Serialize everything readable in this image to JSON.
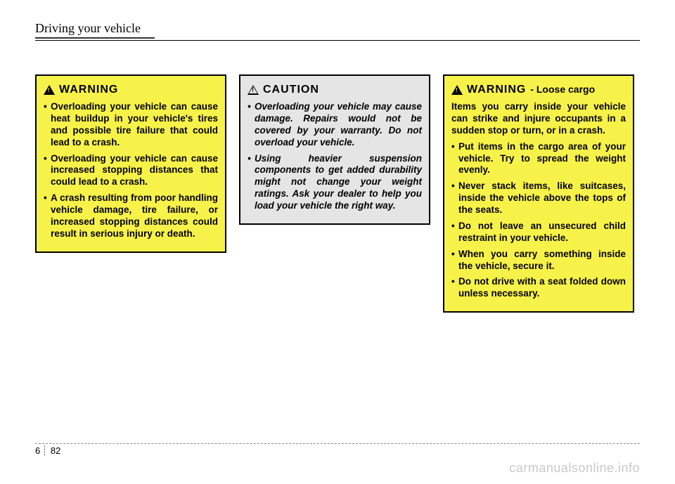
{
  "header": {
    "title": "Driving your vehicle"
  },
  "warning1": {
    "label": "WARNING",
    "items": [
      "Overloading your vehicle can cause heat buildup in your vehicle's tires and possible tire failure that could lead to a crash.",
      "Overloading your vehicle can cause increased stopping dis­tances that could lead to a crash.",
      "A crash resulting from poor handling vehicle damage, tire failure, or increased stopping distances could result in seri­ous injury or death."
    ]
  },
  "caution": {
    "label": "CAUTION",
    "items": [
      "Overloading your vehicle may cause damage. Repairs would not be covered by your war­ranty. Do not overload your vehicle.",
      "Using heavier suspension components to get added durability might not change your weight ratings. Ask your dealer to help you load your vehicle the right way."
    ]
  },
  "warning2": {
    "label": "WARNING",
    "sub": "- Loose cargo",
    "lead": "Items you carry inside your vehicle can strike and injure occupants in a sudden stop or turn, or in a crash.",
    "items": [
      "Put items in the cargo area of your vehicle. Try to spread the weight evenly.",
      "Never stack items, like suit­cases, inside the vehicle above the tops of the seats.",
      "Do not leave an unsecured child restraint in your vehicle.",
      "When you carry something inside the vehicle, secure it.",
      "Do not drive with a seat folded down unless necessary."
    ]
  },
  "footer": {
    "chapter": "6",
    "page": "82"
  },
  "watermark": "carmanualsonline.info",
  "colors": {
    "warning_bg": "#f7f24a",
    "caution_bg": "#e5e5e5",
    "border": "#000000",
    "watermark": "#c9c9c9"
  }
}
